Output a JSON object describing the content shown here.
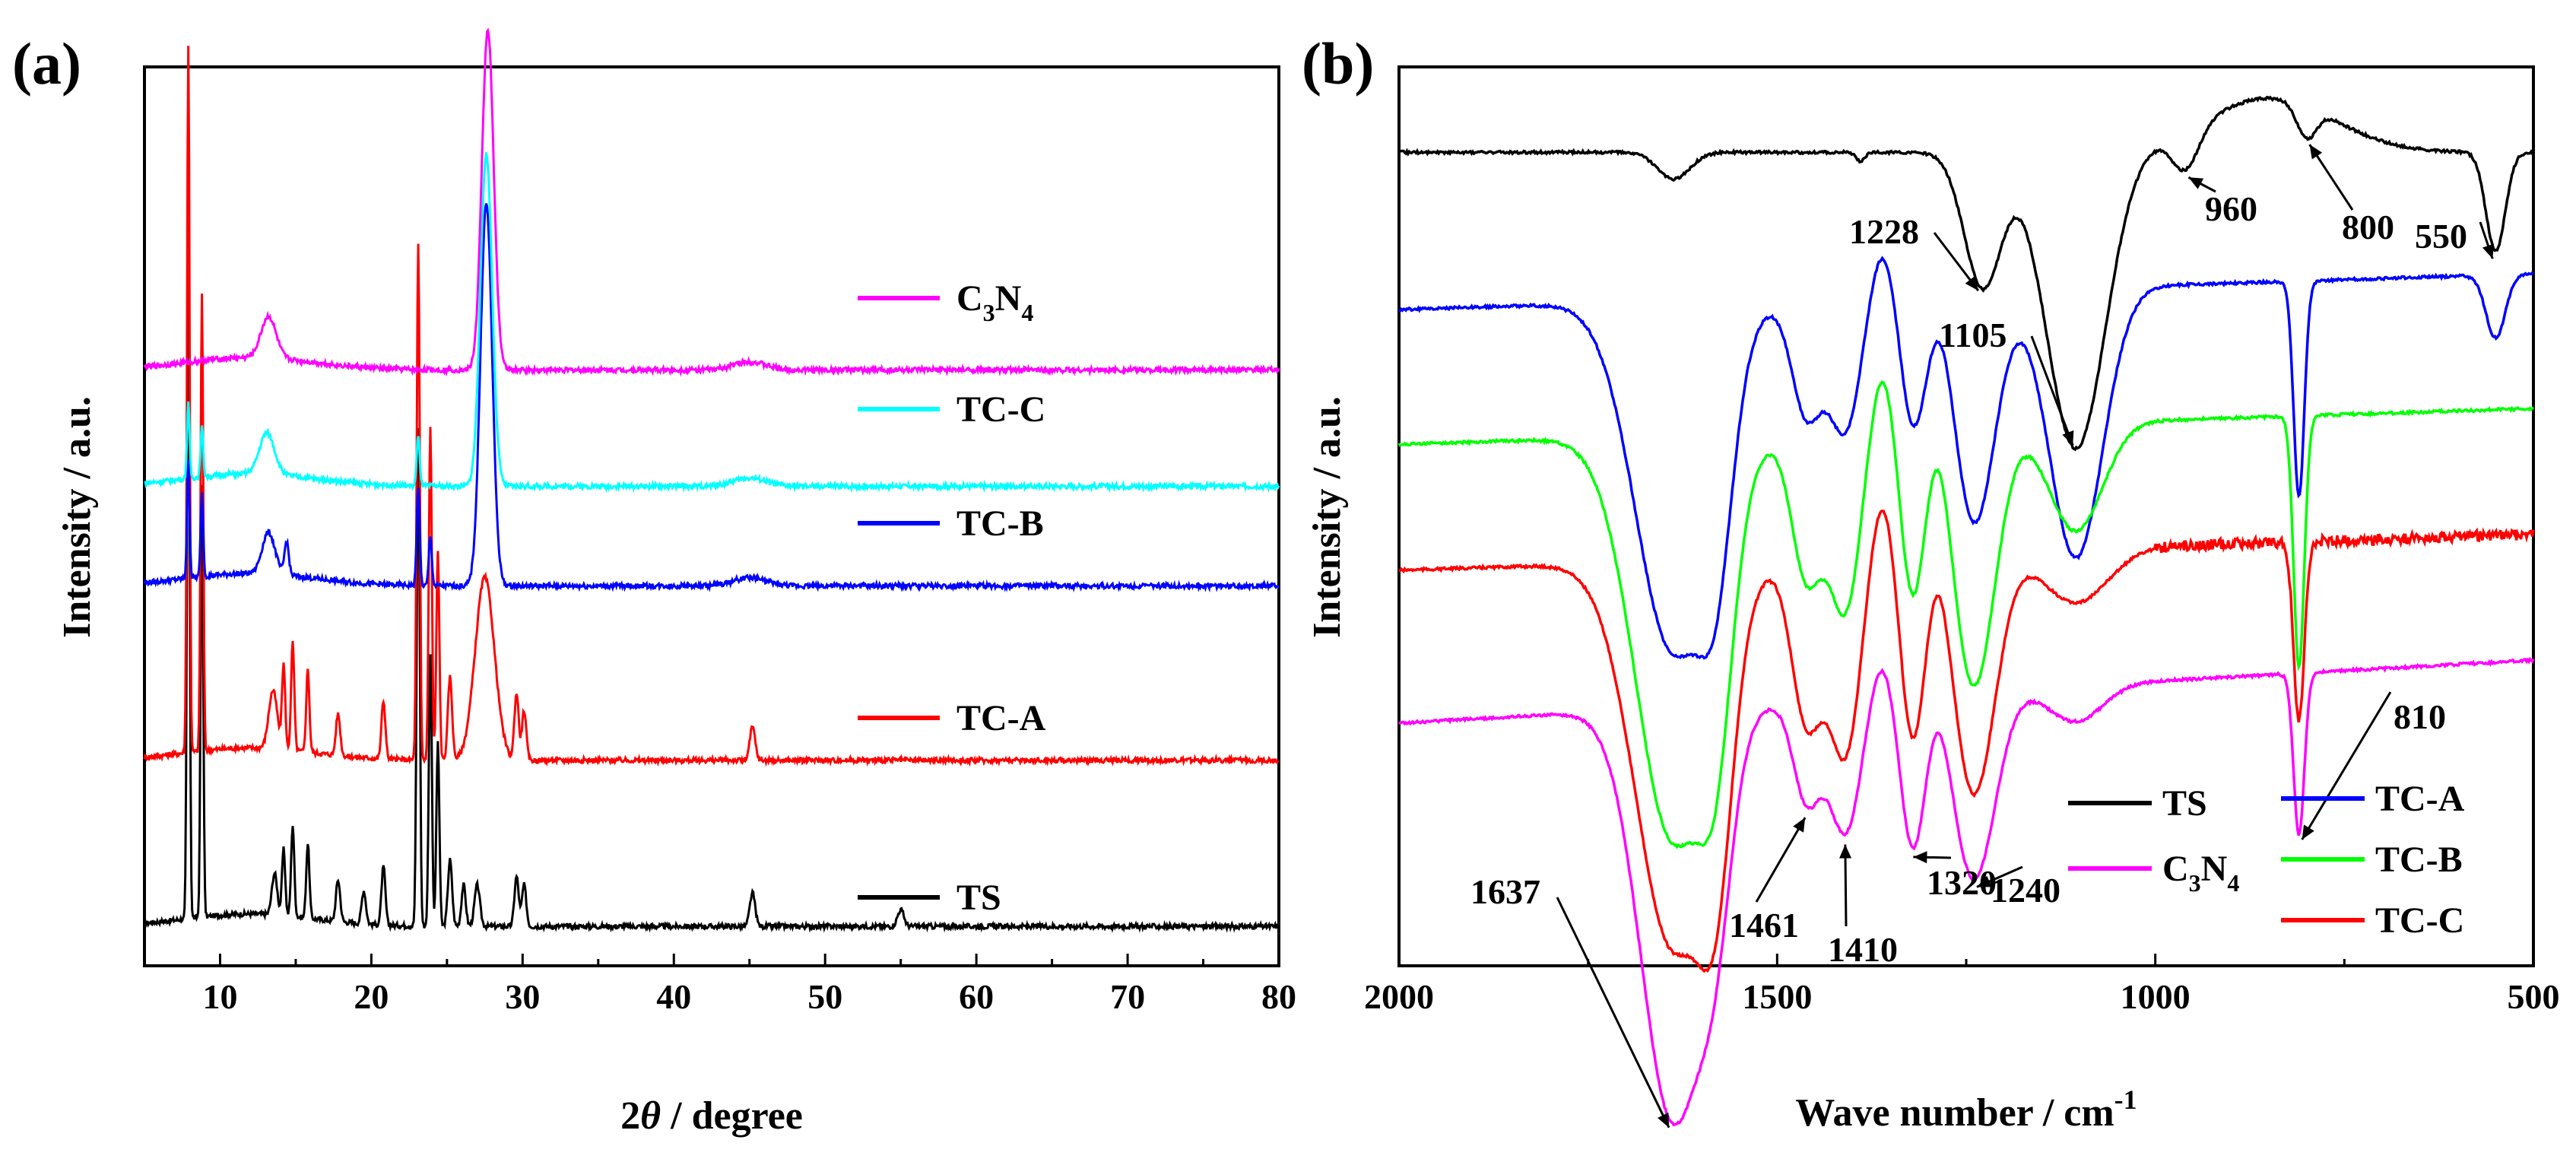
{
  "chart_data": [
    {
      "type": "line",
      "panel_label": "(a)",
      "title": "",
      "xlabel_prefix": "2",
      "xlabel_italic": "θ",
      "xlabel_suffix": " / degree",
      "ylabel": "Intensity / a.u.",
      "xlim": [
        5,
        80
      ],
      "xticks": [
        10,
        20,
        30,
        40,
        50,
        60,
        70,
        80
      ],
      "y_ticks_shown": false,
      "note": "Offset XRD patterns; relative intensities in arbitrary units (baseline offsets 0-1 scale).",
      "series": [
        {
          "name": "TS",
          "label": "TS",
          "color": "#000000",
          "baseline": 0.02,
          "peaks": [
            [
              7.9,
              0.8,
              0.12
            ],
            [
              8.8,
              0.52,
              0.12
            ],
            [
              13.6,
              0.05,
              0.25
            ],
            [
              14.2,
              0.08,
              0.15
            ],
            [
              14.8,
              0.11,
              0.15
            ],
            [
              15.8,
              0.09,
              0.15
            ],
            [
              17.8,
              0.05,
              0.2
            ],
            [
              19.5,
              0.04,
              0.2
            ],
            [
              20.8,
              0.07,
              0.18
            ],
            [
              23.1,
              0.6,
              0.14
            ],
            [
              23.9,
              0.33,
              0.14
            ],
            [
              24.4,
              0.22,
              0.14
            ],
            [
              25.2,
              0.08,
              0.2
            ],
            [
              26.1,
              0.05,
              0.2
            ],
            [
              27.0,
              0.05,
              0.25
            ],
            [
              29.6,
              0.06,
              0.2
            ],
            [
              30.1,
              0.05,
              0.2
            ],
            [
              45.2,
              0.04,
              0.25
            ],
            [
              55.0,
              0.02,
              0.3
            ]
          ]
        },
        {
          "name": "TC-A",
          "label": "TC-A",
          "color": "#ff0000",
          "baseline": 0.22,
          "peaks": [
            [
              7.9,
              0.85,
              0.12
            ],
            [
              8.8,
              0.55,
              0.12
            ],
            [
              13.5,
              0.07,
              0.4
            ],
            [
              14.2,
              0.1,
              0.15
            ],
            [
              14.8,
              0.13,
              0.15
            ],
            [
              15.8,
              0.1,
              0.15
            ],
            [
              17.8,
              0.05,
              0.2
            ],
            [
              20.8,
              0.07,
              0.18
            ],
            [
              23.1,
              0.62,
              0.14
            ],
            [
              23.9,
              0.4,
              0.14
            ],
            [
              24.4,
              0.25,
              0.14
            ],
            [
              25.2,
              0.1,
              0.2
            ],
            [
              27.5,
              0.22,
              0.9
            ],
            [
              29.6,
              0.08,
              0.2
            ],
            [
              30.1,
              0.06,
              0.2
            ],
            [
              45.2,
              0.04,
              0.25
            ]
          ]
        },
        {
          "name": "TC-B",
          "label": "TC-B",
          "color": "#0000ff",
          "baseline": 0.43,
          "peaks": [
            [
              7.9,
              0.14,
              0.12
            ],
            [
              8.8,
              0.1,
              0.12
            ],
            [
              13.2,
              0.05,
              0.6
            ],
            [
              14.4,
              0.04,
              0.2
            ],
            [
              23.1,
              0.12,
              0.14
            ],
            [
              23.9,
              0.06,
              0.14
            ],
            [
              27.6,
              0.46,
              0.55
            ],
            [
              45,
              0.01,
              1.5
            ]
          ]
        },
        {
          "name": "TC-C",
          "label": "TC-C",
          "color": "#00ffff",
          "baseline": 0.55,
          "peaks": [
            [
              7.9,
              0.09,
              0.12
            ],
            [
              8.8,
              0.06,
              0.12
            ],
            [
              13.1,
              0.05,
              0.7
            ],
            [
              23.1,
              0.06,
              0.14
            ],
            [
              27.6,
              0.4,
              0.55
            ],
            [
              45,
              0.01,
              1.5
            ]
          ]
        },
        {
          "name": "C3N4",
          "label_main": "C",
          "label_sub1": "3",
          "label_mid": "N",
          "label_sub2": "4",
          "color": "#ff00ff",
          "baseline": 0.69,
          "peaks": [
            [
              13.2,
              0.05,
              0.7
            ],
            [
              27.7,
              0.41,
              0.55
            ],
            [
              45,
              0.01,
              1.5
            ]
          ]
        }
      ]
    },
    {
      "type": "line",
      "panel_label": "(b)",
      "title": "",
      "xlabel": "Wave number / cm",
      "xlabel_sup": "-1",
      "ylabel": "Intensity / a.u.",
      "xlim": [
        2000,
        500
      ],
      "xticks": [
        2000,
        1500,
        1000,
        500
      ],
      "y_ticks_shown": false,
      "note": "Offset FTIR spectra (transmittance, arbitrary units). dips = absorption bands.",
      "series": [
        {
          "name": "TS",
          "label": "TS",
          "color": "#000000",
          "base_left": 0.095,
          "base_right": 0.095,
          "dips": [
            [
              1637,
              0.03,
              30
            ],
            [
              1390,
              0.01,
              8
            ],
            [
              1228,
              0.15,
              35
            ],
            [
              1105,
              0.33,
              55
            ],
            [
              960,
              0.045,
              25
            ],
            [
              800,
              0.035,
              18
            ],
            [
              550,
              0.11,
              18
            ]
          ],
          "bumps": [
            [
              850,
              0.06,
              120
            ]
          ]
        },
        {
          "name": "TC-A",
          "label": "TC-A",
          "color": "#0000ff",
          "base_left": 0.27,
          "base_right": 0.23,
          "dips": [
            [
              1637,
              0.39,
              70
            ],
            [
              1580,
              0.16,
              30
            ],
            [
              1461,
              0.13,
              28
            ],
            [
              1410,
              0.15,
              30
            ],
            [
              1320,
              0.15,
              25
            ],
            [
              1240,
              0.26,
              40
            ],
            [
              1105,
              0.3,
              50
            ],
            [
              810,
              0.24,
              10
            ],
            [
              550,
              0.07,
              18
            ]
          ],
          "bumps": [
            [
              1360,
              0.06,
              25
            ],
            [
              1280,
              0.04,
              25
            ]
          ]
        },
        {
          "name": "TC-B",
          "label": "TC-B",
          "color": "#00ff00",
          "base_left": 0.42,
          "base_right": 0.38,
          "dips": [
            [
              1637,
              0.45,
              70
            ],
            [
              1580,
              0.18,
              30
            ],
            [
              1461,
              0.16,
              28
            ],
            [
              1410,
              0.2,
              30
            ],
            [
              1320,
              0.2,
              25
            ],
            [
              1240,
              0.29,
              40
            ],
            [
              1105,
              0.12,
              50
            ],
            [
              810,
              0.28,
              10
            ]
          ],
          "bumps": [
            [
              1360,
              0.08,
              25
            ],
            [
              1290,
              0.06,
              25
            ]
          ]
        },
        {
          "name": "TC-C",
          "label": "TC-C",
          "color": "#ff0000",
          "base_left": 0.56,
          "base_right": 0.52,
          "dips": [
            [
              1637,
              0.43,
              70
            ],
            [
              1580,
              0.2,
              30
            ],
            [
              1461,
              0.18,
              28
            ],
            [
              1410,
              0.22,
              30
            ],
            [
              1320,
              0.22,
              25
            ],
            [
              1240,
              0.27,
              40
            ],
            [
              1105,
              0.06,
              60
            ],
            [
              810,
              0.2,
              10
            ]
          ],
          "bumps": [
            [
              1360,
              0.08,
              25
            ],
            [
              1290,
              0.06,
              25
            ]
          ]
        },
        {
          "name": "C3N4",
          "label_main": "C",
          "label_sub1": "3",
          "label_mid": "N",
          "label_sub2": "4",
          "color": "#ff00ff",
          "base_left": 0.73,
          "base_right": 0.66,
          "dips": [
            [
              1637,
              0.46,
              60
            ],
            [
              1580,
              0.13,
              30
            ],
            [
              1461,
              0.11,
              25
            ],
            [
              1410,
              0.15,
              30
            ],
            [
              1320,
              0.18,
              25
            ],
            [
              1240,
              0.21,
              40
            ],
            [
              1105,
              0.04,
              50
            ],
            [
              810,
              0.18,
              10
            ]
          ],
          "bumps": [
            [
              1360,
              0.05,
              25
            ],
            [
              1290,
              0.04,
              25
            ]
          ]
        }
      ],
      "annotations": [
        {
          "text": "1228",
          "x": 1228
        },
        {
          "text": "1105",
          "x": 1105
        },
        {
          "text": "960",
          "x": 960
        },
        {
          "text": "800",
          "x": 800
        },
        {
          "text": "550",
          "x": 550
        },
        {
          "text": "810",
          "x": 810
        },
        {
          "text": "1637",
          "x": 1637
        },
        {
          "text": "1461",
          "x": 1461
        },
        {
          "text": "1410",
          "x": 1410
        },
        {
          "text": "1320",
          "x": 1320
        },
        {
          "text": "1240",
          "x": 1240
        }
      ],
      "legend_order": [
        "TS",
        "TC-A",
        "C3N4",
        "TC-B",
        "TC-C"
      ]
    }
  ]
}
